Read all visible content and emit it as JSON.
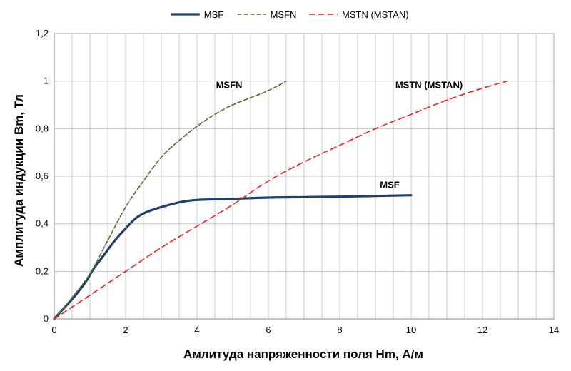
{
  "chart_data": {
    "type": "line",
    "xlabel": "Амлитуда напряженности поля  Hm, А/м",
    "ylabel": "Амплитуда индукции Bm, Тл",
    "xlim": [
      0,
      14
    ],
    "ylim": [
      0,
      1.2
    ],
    "x_ticks": [
      0,
      2,
      4,
      6,
      8,
      10,
      12,
      14
    ],
    "y_ticks": [
      0,
      0.2,
      0.4,
      0.6,
      0.8,
      1,
      1.2
    ],
    "x_tick_labels": [
      "0",
      "2",
      "4",
      "6",
      "8",
      "10",
      "12",
      "14"
    ],
    "y_tick_labels": [
      "0",
      "0,2",
      "0,4",
      "0,6",
      "0,8",
      "1",
      "1,2"
    ],
    "grid": true,
    "minor_grid_x_step": 0.5,
    "legend_position": "top-center",
    "series": [
      {
        "name": "MSF",
        "color": "#1f3f73",
        "style": "solid",
        "x": [
          0,
          0.3,
          0.6,
          0.9,
          1.1,
          1.4,
          1.7,
          2.0,
          2.3,
          2.6,
          3.0,
          3.5,
          4.0,
          5.0,
          6.0,
          7.0,
          8.0,
          9.0,
          10.0
        ],
        "y": [
          0,
          0.05,
          0.1,
          0.16,
          0.21,
          0.27,
          0.33,
          0.38,
          0.425,
          0.45,
          0.47,
          0.49,
          0.5,
          0.505,
          0.51,
          0.512,
          0.514,
          0.517,
          0.52
        ]
      },
      {
        "name": "MSFN",
        "color": "#556b2f",
        "style": "dashed",
        "x": [
          0,
          0.5,
          1.0,
          1.5,
          2.0,
          2.5,
          3.0,
          3.5,
          4.0,
          4.5,
          5.0,
          5.5,
          6.0,
          6.5
        ],
        "y": [
          0,
          0.09,
          0.19,
          0.33,
          0.47,
          0.58,
          0.68,
          0.75,
          0.81,
          0.86,
          0.9,
          0.93,
          0.96,
          1.0
        ]
      },
      {
        "name": "MSTN (MSTAN)",
        "color": "#e8201a",
        "style": "dashed",
        "x": [
          0,
          1,
          2,
          3,
          4,
          5,
          6,
          7,
          8,
          9,
          10,
          11,
          12,
          12.7
        ],
        "y": [
          0,
          0.1,
          0.2,
          0.3,
          0.39,
          0.48,
          0.58,
          0.66,
          0.73,
          0.8,
          0.86,
          0.92,
          0.97,
          1.0
        ]
      }
    ],
    "annotations": [
      {
        "text": "MSFN",
        "x": 4.9,
        "y": 0.97
      },
      {
        "text": "MSTN (MSTAN)",
        "x": 10.5,
        "y": 0.97
      },
      {
        "text": "MSF",
        "x": 9.4,
        "y": 0.55
      }
    ]
  }
}
